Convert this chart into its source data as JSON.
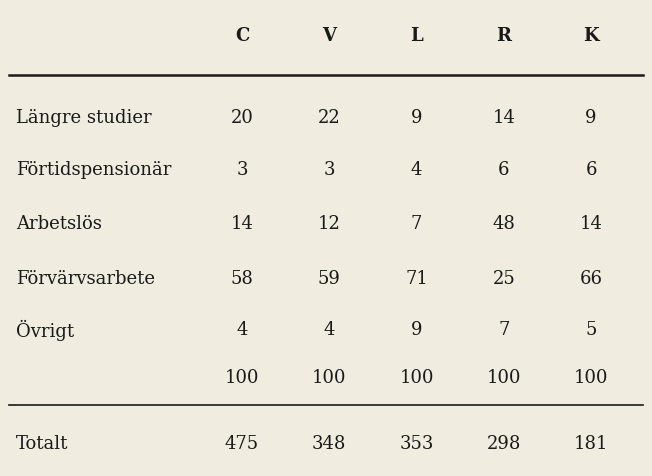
{
  "columns": [
    "C",
    "V",
    "L",
    "R",
    "K"
  ],
  "rows": [
    {
      "label": "Längre studier",
      "values": [
        20,
        22,
        9,
        14,
        9
      ]
    },
    {
      "label": "Förtidspensionär",
      "values": [
        3,
        3,
        4,
        6,
        6
      ]
    },
    {
      "label": "Arbetslös",
      "values": [
        14,
        12,
        7,
        48,
        14
      ]
    },
    {
      "label": "Förvärvsarbete",
      "values": [
        58,
        59,
        71,
        25,
        66
      ]
    },
    {
      "label": "Övrigt",
      "values": [
        4,
        4,
        9,
        7,
        5
      ]
    },
    {
      "label": "",
      "values": [
        100,
        100,
        100,
        100,
        100
      ]
    },
    {
      "label": "Totalt",
      "values": [
        475,
        348,
        353,
        298,
        181
      ]
    }
  ],
  "background_color": "#f0ece0",
  "text_color": "#1a1a1a",
  "header_fontsize": 13,
  "body_fontsize": 13,
  "label_fontsize": 13,
  "fig_width": 6.52,
  "fig_height": 4.77,
  "dpi": 100
}
